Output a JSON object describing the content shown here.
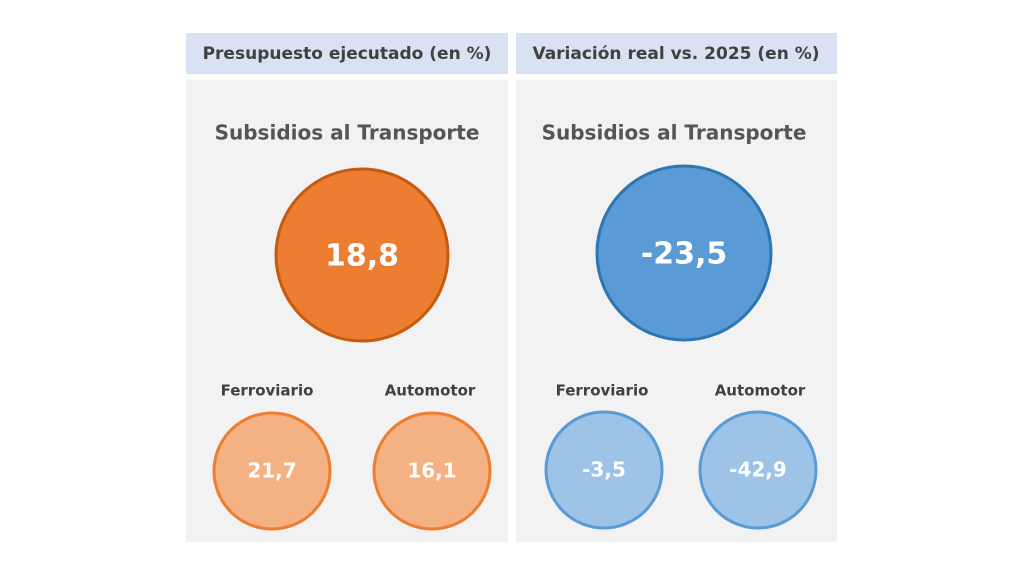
{
  "panels": [
    {
      "header": "Presupuesto ejecutado (en %)",
      "title": "Subsidios al Transporte",
      "value": "18,8",
      "items": [
        {
          "label": "Ferroviario",
          "value": "21,7"
        },
        {
          "label": "Automotor",
          "value": "16,1"
        }
      ]
    },
    {
      "header": "Variación real vs. 2025 (en %)",
      "title": "Subsidios al Transporte",
      "value": "-23,5",
      "items": [
        {
          "label": "Ferroviario",
          "value": "-3,5"
        },
        {
          "label": "Automotor",
          "value": "-42,9"
        }
      ]
    }
  ]
}
